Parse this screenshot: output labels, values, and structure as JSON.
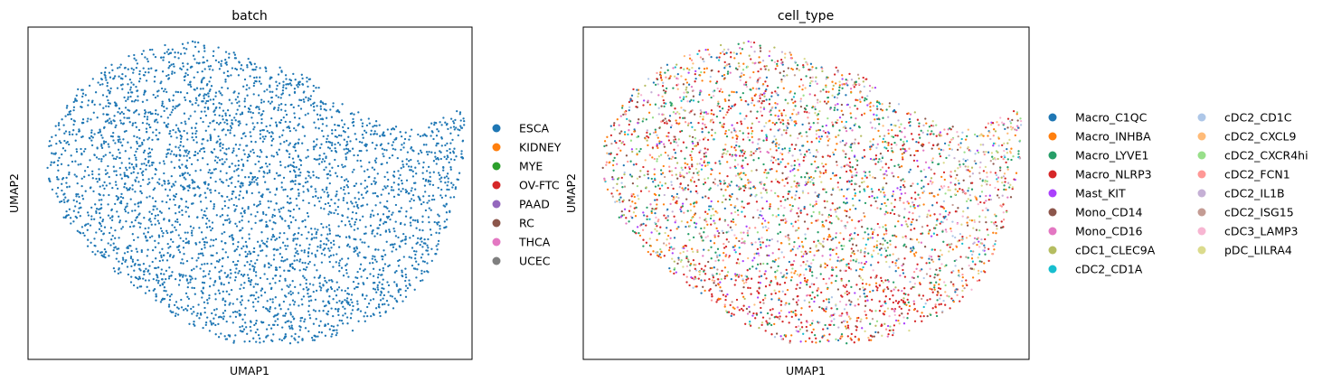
{
  "chart_data": [
    {
      "type": "scatter",
      "title": "batch",
      "xlabel": "UMAP1",
      "ylabel": "UMAP2",
      "grid": false,
      "ticks": "none",
      "legend_position": "right",
      "point_color": "#1f77b4",
      "series": [
        {
          "name": "ESCA",
          "color": "#1f77b4"
        },
        {
          "name": "KIDNEY",
          "color": "#ff7f0e"
        },
        {
          "name": "MYE",
          "color": "#2ca02c"
        },
        {
          "name": "OV-FTC",
          "color": "#d62728"
        },
        {
          "name": "PAAD",
          "color": "#9467bd"
        },
        {
          "name": "RC",
          "color": "#8c564b"
        },
        {
          "name": "THCA",
          "color": "#e377c2"
        },
        {
          "name": "UCEC",
          "color": "#7f7f7f"
        }
      ]
    },
    {
      "type": "scatter",
      "title": "cell_type",
      "xlabel": "UMAP1",
      "ylabel": "UMAP2",
      "grid": false,
      "ticks": "none",
      "legend_position": "right",
      "legend_columns": 2,
      "series": [
        {
          "name": "Macro_C1QC",
          "color": "#1f77b4"
        },
        {
          "name": "Macro_INHBA",
          "color": "#ff7f0e"
        },
        {
          "name": "Macro_LYVE1",
          "color": "#279e68"
        },
        {
          "name": "Macro_NLRP3",
          "color": "#d62728"
        },
        {
          "name": "Mast_KIT",
          "color": "#aa40fc"
        },
        {
          "name": "Mono_CD14",
          "color": "#8c564b"
        },
        {
          "name": "Mono_CD16",
          "color": "#e377c2"
        },
        {
          "name": "cDC1_CLEC9A",
          "color": "#b5bd61"
        },
        {
          "name": "cDC2_CD1A",
          "color": "#17becf"
        },
        {
          "name": "cDC2_CD1C",
          "color": "#aec7e8"
        },
        {
          "name": "cDC2_CXCL9",
          "color": "#ffbb78"
        },
        {
          "name": "cDC2_CXCR4hi",
          "color": "#98df8a"
        },
        {
          "name": "cDC2_FCN1",
          "color": "#ff9896"
        },
        {
          "name": "cDC2_IL1B",
          "color": "#c5b0d5"
        },
        {
          "name": "cDC2_ISG15",
          "color": "#c49c94"
        },
        {
          "name": "cDC3_LAMP3",
          "color": "#f7b6d2"
        },
        {
          "name": "pDC_LILRA4",
          "color": "#dbdb8d"
        }
      ]
    }
  ]
}
